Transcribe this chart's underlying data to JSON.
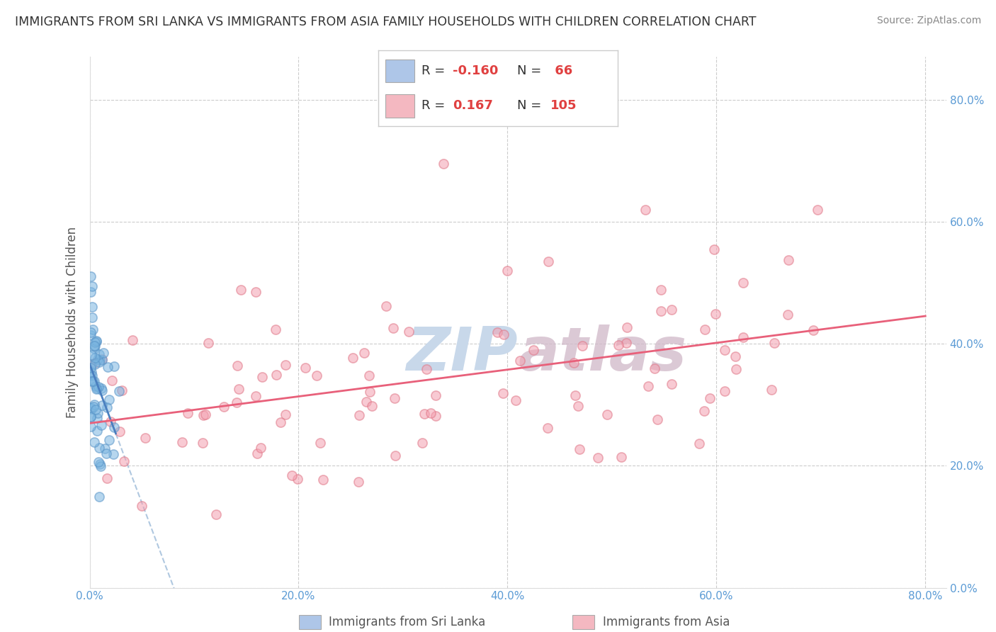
{
  "title": "IMMIGRANTS FROM SRI LANKA VS IMMIGRANTS FROM ASIA FAMILY HOUSEHOLDS WITH CHILDREN CORRELATION CHART",
  "source": "Source: ZipAtlas.com",
  "ylabel": "Family Households with Children",
  "xlim": [
    0.0,
    0.82
  ],
  "ylim": [
    0.0,
    0.87
  ],
  "xticks": [
    0.0,
    0.2,
    0.4,
    0.6,
    0.8
  ],
  "yticks": [
    0.0,
    0.2,
    0.4,
    0.6,
    0.8
  ],
  "legend1_color": "#aec6e8",
  "legend2_color": "#f4b8c1",
  "scatter1_color": "#7ab5e0",
  "scatter1_edge": "#5a95c8",
  "scatter2_color": "#f4a0b0",
  "scatter2_edge": "#e07888",
  "trendline1_color": "#4a7fbf",
  "trendline1_dash_color": "#b0c8e0",
  "trendline2_color": "#e8607a",
  "watermark_color": "#c8d8ea",
  "grid_color": "#cccccc",
  "title_color": "#333333",
  "title_fontsize": 12.5,
  "tick_label_color": "#5b9bd5",
  "axis_label_color": "#555555",
  "bottom_legend": [
    "Immigrants from Sri Lanka",
    "Immigrants from Asia"
  ],
  "R1": -0.16,
  "N1": 66,
  "R2": 0.167,
  "N2": 105
}
